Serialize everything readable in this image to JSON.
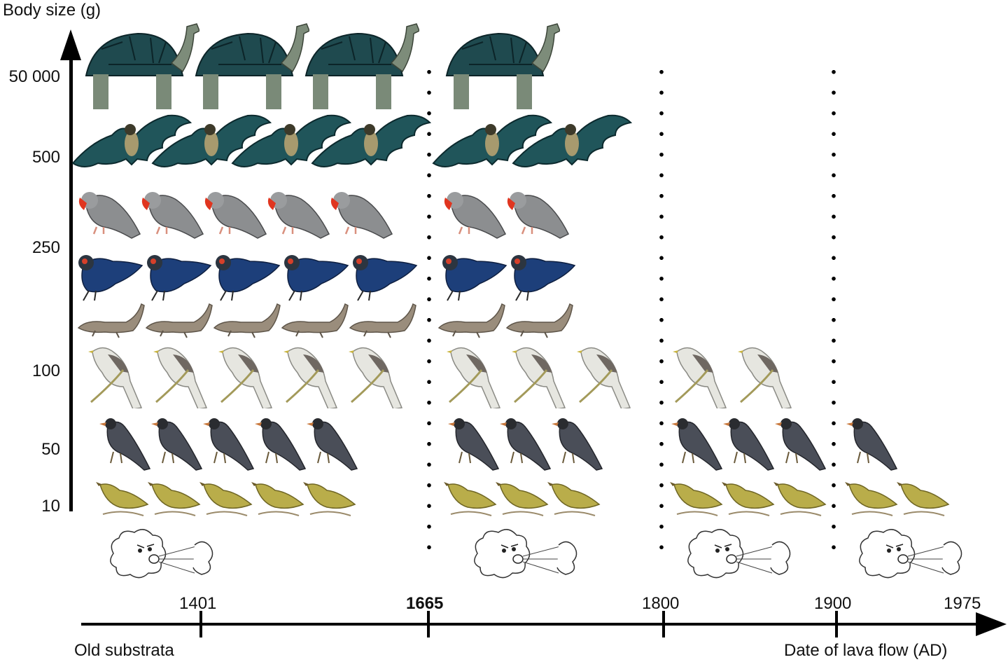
{
  "y_axis": {
    "title": "Body size (g)",
    "ticks": [
      "50 000",
      "500",
      "250",
      "100",
      "50",
      "10"
    ]
  },
  "x_axis": {
    "left_label": "Old substrata",
    "right_label": "Date of lava flow (AD)",
    "ticks": [
      "1401",
      "1665",
      "1800",
      "1900",
      "1975"
    ]
  },
  "species_rows": [
    {
      "icon": "giant-tortoise-icon",
      "counts": [
        3,
        1,
        0,
        0
      ]
    },
    {
      "icon": "fruit-bat-icon",
      "counts": [
        4,
        2,
        0,
        0
      ]
    },
    {
      "icon": "red-billed-grey-bird-icon",
      "counts": [
        5,
        2,
        0,
        0
      ]
    },
    {
      "icon": "blue-pigeon-icon",
      "counts": [
        5,
        2,
        0,
        0
      ]
    },
    {
      "icon": "skink-lizard-icon",
      "counts": [
        5,
        2,
        0,
        0
      ]
    },
    {
      "icon": "white-crested-bird-icon",
      "counts": [
        5,
        3,
        2,
        0
      ]
    },
    {
      "icon": "grey-songbird-icon",
      "counts": [
        5,
        3,
        3,
        1
      ]
    },
    {
      "icon": "olive-warbler-icon",
      "counts": [
        5,
        3,
        3,
        2
      ]
    }
  ],
  "wind_icons": [
    "blowing-wind-cloud-icon",
    "blowing-wind-cloud-icon",
    "blowing-wind-cloud-icon",
    "blowing-wind-cloud-icon"
  ],
  "colors": {
    "tortoise": "#1f4a4f",
    "bat": "#20555a",
    "grey_bird": "#8c8e90",
    "red_bill": "#e0351f",
    "pigeon": "#1d3f7a",
    "lizard": "#9a8d7c",
    "white_bird": "#e6e6e0",
    "songbird": "#4a4e58",
    "warbler": "#b9ad4a",
    "axis": "#000000"
  }
}
